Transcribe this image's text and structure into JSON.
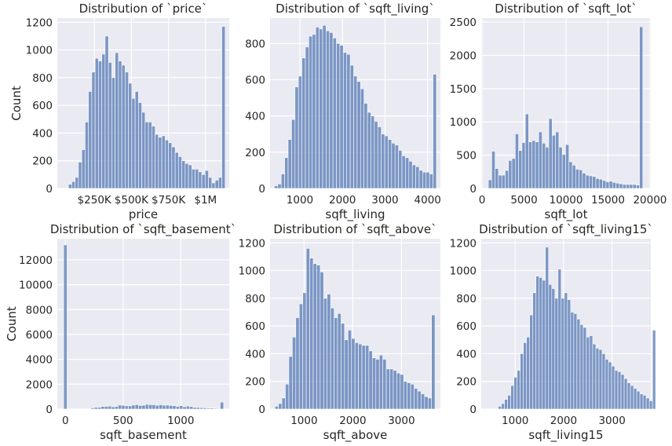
{
  "figure": {
    "background": "#ffffff",
    "axes_background": "#eaeaf2",
    "grid_color": "#ffffff",
    "bar_color": "#4c72b0"
  },
  "chart_data": [
    {
      "type": "bar",
      "subtype": "histogram",
      "title": "Distribution of `price`",
      "xlabel": "price",
      "ylabel": "Count",
      "xlim": [
        0,
        1160000
      ],
      "ylim": [
        0,
        1230
      ],
      "xticks": [
        {
          "v": 250000,
          "label": "$250K"
        },
        {
          "v": 500000,
          "label": "$500K"
        },
        {
          "v": 750000,
          "label": "$750K"
        },
        {
          "v": 1000000,
          "label": "$1M"
        }
      ],
      "yticks": [
        {
          "v": 0,
          "label": "0"
        },
        {
          "v": 200,
          "label": "200"
        },
        {
          "v": 400,
          "label": "400"
        },
        {
          "v": 600,
          "label": "600"
        },
        {
          "v": 800,
          "label": "800"
        },
        {
          "v": 1000,
          "label": "1000"
        },
        {
          "v": 1200,
          "label": "1200"
        }
      ],
      "bins": {
        "start": 75000,
        "width": 22500
      },
      "values": [
        30,
        50,
        80,
        190,
        280,
        480,
        700,
        840,
        940,
        920,
        970,
        1100,
        910,
        800,
        980,
        920,
        890,
        840,
        760,
        650,
        700,
        620,
        550,
        480,
        480,
        450,
        390,
        370,
        380,
        350,
        330,
        300,
        260,
        230,
        200,
        180,
        170,
        140,
        140,
        120,
        100,
        130,
        80,
        40,
        60,
        80,
        1170
      ]
    },
    {
      "type": "bar",
      "subtype": "histogram",
      "title": "Distribution of `sqft_living`",
      "xlabel": "sqft_living",
      "ylabel": "",
      "xlim": [
        300,
        4300
      ],
      "ylim": [
        0,
        940
      ],
      "xticks": [
        {
          "v": 1000,
          "label": "1000"
        },
        {
          "v": 2000,
          "label": "2000"
        },
        {
          "v": 3000,
          "label": "3000"
        },
        {
          "v": 4000,
          "label": "4000"
        }
      ],
      "yticks": [
        {
          "v": 0,
          "label": "0"
        },
        {
          "v": 200,
          "label": "200"
        },
        {
          "v": 400,
          "label": "400"
        },
        {
          "v": 600,
          "label": "600"
        },
        {
          "v": 800,
          "label": "800"
        }
      ],
      "bins": {
        "start": 400,
        "width": 81
      },
      "values": [
        15,
        25,
        80,
        170,
        270,
        380,
        560,
        620,
        720,
        780,
        840,
        850,
        890,
        880,
        900,
        870,
        860,
        830,
        800,
        790,
        750,
        740,
        680,
        620,
        590,
        550,
        470,
        420,
        400,
        370,
        340,
        300,
        290,
        270,
        250,
        240,
        210,
        180,
        170,
        150,
        130,
        120,
        100,
        90,
        90,
        80,
        630
      ]
    },
    {
      "type": "bar",
      "subtype": "histogram",
      "title": "Distribution of `sqft_lot`",
      "xlabel": "sqft_lot",
      "ylabel": "",
      "xlim": [
        -100,
        20100
      ],
      "ylim": [
        0,
        2560
      ],
      "xticks": [
        {
          "v": 0,
          "label": "0"
        },
        {
          "v": 5000,
          "label": "5000"
        },
        {
          "v": 10000,
          "label": "10000"
        },
        {
          "v": 15000,
          "label": "15000"
        },
        {
          "v": 20000,
          "label": "20000"
        }
      ],
      "yticks": [
        {
          "v": 0,
          "label": "0"
        },
        {
          "v": 500,
          "label": "500"
        },
        {
          "v": 1000,
          "label": "1000"
        },
        {
          "v": 1500,
          "label": "1500"
        },
        {
          "v": 2000,
          "label": "2000"
        },
        {
          "v": 2500,
          "label": "2500"
        }
      ],
      "bins": {
        "start": 750,
        "width": 400
      },
      "values": [
        130,
        560,
        300,
        200,
        200,
        270,
        420,
        450,
        820,
        570,
        690,
        1120,
        700,
        720,
        700,
        850,
        680,
        620,
        1050,
        800,
        850,
        620,
        510,
        660,
        400,
        350,
        290,
        280,
        230,
        200,
        190,
        180,
        150,
        140,
        120,
        100,
        110,
        90,
        80,
        70,
        60,
        60,
        60,
        60,
        50,
        2430
      ]
    },
    {
      "type": "bar",
      "subtype": "histogram",
      "title": "Distribution of `sqft_basement`",
      "xlabel": "sqft_basement",
      "ylabel": "Count",
      "xlim": [
        -70,
        1420
      ],
      "ylim": [
        0,
        13700
      ],
      "xticks": [
        {
          "v": 0,
          "label": "0"
        },
        {
          "v": 500,
          "label": "500"
        },
        {
          "v": 1000,
          "label": "1000"
        }
      ],
      "yticks": [
        {
          "v": 0,
          "label": "0"
        },
        {
          "v": 2000,
          "label": "2000"
        },
        {
          "v": 4000,
          "label": "4000"
        },
        {
          "v": 6000,
          "label": "6000"
        },
        {
          "v": 8000,
          "label": "8000"
        },
        {
          "v": 10000,
          "label": "10000"
        },
        {
          "v": 12000,
          "label": "12000"
        }
      ],
      "bins": {
        "start": -15,
        "width": 29.5
      },
      "values": [
        13200,
        0,
        0,
        0,
        0,
        0,
        0,
        20,
        100,
        150,
        150,
        210,
        220,
        240,
        180,
        210,
        320,
        300,
        260,
        260,
        320,
        360,
        290,
        310,
        380,
        360,
        350,
        300,
        350,
        310,
        320,
        290,
        270,
        220,
        280,
        190,
        240,
        200,
        140,
        130,
        110,
        100,
        80,
        80,
        60,
        50,
        560
      ]
    },
    {
      "type": "bar",
      "subtype": "histogram",
      "title": "Distribution of `sqft_above`",
      "xlabel": "sqft_above",
      "ylabel": "",
      "xlim": [
        300,
        3800
      ],
      "ylim": [
        0,
        1230
      ],
      "xticks": [
        {
          "v": 1000,
          "label": "1000"
        },
        {
          "v": 2000,
          "label": "2000"
        },
        {
          "v": 3000,
          "label": "3000"
        }
      ],
      "yticks": [
        {
          "v": 0,
          "label": "0"
        },
        {
          "v": 200,
          "label": "200"
        },
        {
          "v": 400,
          "label": "400"
        },
        {
          "v": 600,
          "label": "600"
        },
        {
          "v": 800,
          "label": "800"
        },
        {
          "v": 1000,
          "label": "1000"
        },
        {
          "v": 1200,
          "label": "1200"
        }
      ],
      "bins": {
        "start": 400,
        "width": 71.5
      },
      "values": [
        20,
        40,
        80,
        180,
        380,
        520,
        660,
        760,
        840,
        1160,
        1090,
        1050,
        1040,
        990,
        800,
        830,
        730,
        660,
        690,
        620,
        500,
        570,
        510,
        480,
        470,
        460,
        460,
        420,
        370,
        360,
        390,
        360,
        290,
        290,
        280,
        260,
        250,
        200,
        190,
        180,
        150,
        130,
        110,
        90,
        80,
        680
      ]
    },
    {
      "type": "bar",
      "subtype": "histogram",
      "title": "Distribution of `sqft_living15`",
      "xlabel": "sqft_living15",
      "ylabel": "",
      "xlim": [
        300,
        3800
      ],
      "ylim": [
        0,
        1230
      ],
      "xticks": [
        {
          "v": 1000,
          "label": "1000"
        },
        {
          "v": 2000,
          "label": "2000"
        },
        {
          "v": 3000,
          "label": "3000"
        }
      ],
      "yticks": [
        {
          "v": 0,
          "label": "0"
        },
        {
          "v": 200,
          "label": "200"
        },
        {
          "v": 400,
          "label": "400"
        },
        {
          "v": 600,
          "label": "600"
        },
        {
          "v": 800,
          "label": "800"
        },
        {
          "v": 1000,
          "label": "1000"
        },
        {
          "v": 1200,
          "label": "1200"
        }
      ],
      "bins": {
        "start": 650,
        "width": 65
      },
      "values": [
        20,
        40,
        70,
        100,
        170,
        230,
        280,
        400,
        480,
        520,
        680,
        840,
        960,
        950,
        930,
        1170,
        900,
        870,
        800,
        1010,
        800,
        840,
        790,
        700,
        690,
        650,
        610,
        590,
        520,
        530,
        470,
        440,
        430,
        400,
        360,
        340,
        310,
        280,
        270,
        250,
        220,
        190,
        170,
        150,
        130,
        110,
        100,
        80,
        60,
        570
      ]
    }
  ]
}
